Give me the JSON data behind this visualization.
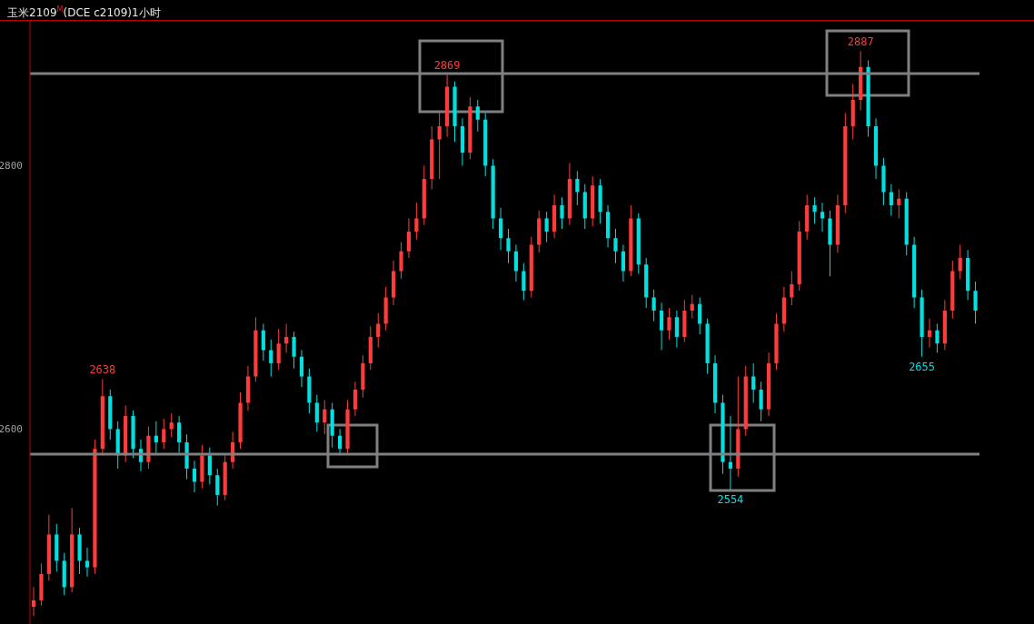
{
  "chart_data": {
    "type": "candlestick",
    "title": "玉米2109$^{M}$(DCE c2109)1小时",
    "categories": [
      null,
      null,
      null,
      null,
      null,
      null,
      null,
      null,
      null,
      null,
      null,
      null,
      null,
      null,
      null,
      null,
      null,
      null,
      null,
      null,
      null,
      null,
      null,
      null,
      null,
      null,
      null,
      null,
      null,
      null,
      null,
      null,
      null,
      null,
      null,
      null,
      null,
      null,
      null,
      null,
      null,
      null,
      null,
      null,
      null,
      null,
      null,
      null,
      null,
      null,
      null,
      null,
      null,
      null,
      null,
      null,
      null,
      null,
      null,
      null,
      null,
      null,
      null,
      null,
      null,
      null,
      null,
      null,
      null,
      null,
      null,
      null,
      null,
      null,
      null,
      null,
      null,
      null,
      null,
      null,
      null,
      null,
      null,
      null,
      null,
      null,
      null,
      null,
      null,
      null,
      null,
      null,
      null,
      null,
      null,
      null,
      null,
      null,
      null,
      null,
      null,
      null,
      null,
      null,
      null,
      null,
      null,
      null,
      null,
      null,
      null,
      null,
      null,
      null,
      null,
      null,
      null,
      null,
      null,
      null,
      null,
      null,
      null,
      null
    ],
    "ohlc": [
      [
        2465,
        2480,
        2458,
        2470
      ],
      [
        2470,
        2498,
        2466,
        2490
      ],
      [
        2490,
        2535,
        2485,
        2520
      ],
      [
        2520,
        2528,
        2492,
        2500
      ],
      [
        2500,
        2506,
        2474,
        2480
      ],
      [
        2480,
        2540,
        2476,
        2520
      ],
      [
        2520,
        2525,
        2490,
        2500
      ],
      [
        2500,
        2510,
        2488,
        2495
      ],
      [
        2495,
        2592,
        2490,
        2585
      ],
      [
        2585,
        2638,
        2580,
        2625
      ],
      [
        2625,
        2630,
        2592,
        2600
      ],
      [
        2600,
        2606,
        2570,
        2580
      ],
      [
        2580,
        2618,
        2575,
        2610
      ],
      [
        2610,
        2614,
        2578,
        2585
      ],
      [
        2585,
        2592,
        2568,
        2575
      ],
      [
        2575,
        2602,
        2570,
        2595
      ],
      [
        2595,
        2606,
        2582,
        2590
      ],
      [
        2590,
        2608,
        2585,
        2600
      ],
      [
        2600,
        2612,
        2594,
        2605
      ],
      [
        2605,
        2610,
        2582,
        2590
      ],
      [
        2590,
        2596,
        2562,
        2570
      ],
      [
        2570,
        2576,
        2552,
        2560
      ],
      [
        2560,
        2588,
        2555,
        2580
      ],
      [
        2580,
        2586,
        2558,
        2565
      ],
      [
        2565,
        2570,
        2542,
        2550
      ],
      [
        2550,
        2580,
        2546,
        2575
      ],
      [
        2575,
        2598,
        2570,
        2590
      ],
      [
        2590,
        2628,
        2585,
        2620
      ],
      [
        2620,
        2648,
        2614,
        2640
      ],
      [
        2640,
        2685,
        2636,
        2675
      ],
      [
        2675,
        2680,
        2652,
        2660
      ],
      [
        2660,
        2668,
        2640,
        2650
      ],
      [
        2650,
        2676,
        2645,
        2665
      ],
      [
        2665,
        2680,
        2658,
        2670
      ],
      [
        2670,
        2674,
        2646,
        2655
      ],
      [
        2655,
        2660,
        2632,
        2640
      ],
      [
        2640,
        2646,
        2612,
        2620
      ],
      [
        2620,
        2626,
        2598,
        2605
      ],
      [
        2605,
        2622,
        2596,
        2615
      ],
      [
        2615,
        2620,
        2586,
        2595
      ],
      [
        2595,
        2600,
        2580,
        2585
      ],
      [
        2585,
        2622,
        2582,
        2615
      ],
      [
        2615,
        2636,
        2610,
        2630
      ],
      [
        2630,
        2656,
        2624,
        2650
      ],
      [
        2650,
        2678,
        2645,
        2670
      ],
      [
        2670,
        2688,
        2662,
        2680
      ],
      [
        2680,
        2708,
        2675,
        2700
      ],
      [
        2700,
        2728,
        2694,
        2720
      ],
      [
        2720,
        2742,
        2714,
        2735
      ],
      [
        2735,
        2760,
        2730,
        2750
      ],
      [
        2750,
        2772,
        2744,
        2760
      ],
      [
        2760,
        2800,
        2755,
        2790
      ],
      [
        2790,
        2830,
        2782,
        2820
      ],
      [
        2820,
        2842,
        2790,
        2830
      ],
      [
        2830,
        2869,
        2822,
        2860
      ],
      [
        2860,
        2864,
        2818,
        2830
      ],
      [
        2830,
        2836,
        2800,
        2810
      ],
      [
        2810,
        2852,
        2805,
        2845
      ],
      [
        2845,
        2850,
        2826,
        2835
      ],
      [
        2835,
        2840,
        2792,
        2800
      ],
      [
        2800,
        2805,
        2752,
        2760
      ],
      [
        2760,
        2768,
        2736,
        2745
      ],
      [
        2745,
        2752,
        2726,
        2735
      ],
      [
        2735,
        2740,
        2712,
        2720
      ],
      [
        2720,
        2726,
        2698,
        2705
      ],
      [
        2705,
        2746,
        2700,
        2740
      ],
      [
        2740,
        2766,
        2734,
        2760
      ],
      [
        2760,
        2765,
        2742,
        2750
      ],
      [
        2750,
        2778,
        2745,
        2770
      ],
      [
        2770,
        2776,
        2752,
        2760
      ],
      [
        2760,
        2802,
        2755,
        2790
      ],
      [
        2790,
        2796,
        2770,
        2780
      ],
      [
        2780,
        2786,
        2752,
        2760
      ],
      [
        2760,
        2792,
        2754,
        2785
      ],
      [
        2785,
        2790,
        2756,
        2765
      ],
      [
        2765,
        2770,
        2738,
        2745
      ],
      [
        2745,
        2752,
        2726,
        2735
      ],
      [
        2735,
        2740,
        2712,
        2720
      ],
      [
        2720,
        2770,
        2716,
        2760
      ],
      [
        2760,
        2764,
        2718,
        2725
      ],
      [
        2725,
        2730,
        2692,
        2700
      ],
      [
        2700,
        2706,
        2682,
        2690
      ],
      [
        2690,
        2696,
        2660,
        2675
      ],
      [
        2675,
        2692,
        2668,
        2685
      ],
      [
        2685,
        2690,
        2662,
        2670
      ],
      [
        2670,
        2698,
        2666,
        2690
      ],
      [
        2690,
        2702,
        2684,
        2695
      ],
      [
        2695,
        2700,
        2672,
        2680
      ],
      [
        2680,
        2684,
        2642,
        2650
      ],
      [
        2650,
        2656,
        2612,
        2620
      ],
      [
        2620,
        2626,
        2566,
        2575
      ],
      [
        2575,
        2610,
        2554,
        2570
      ],
      [
        2570,
        2640,
        2564,
        2600
      ],
      [
        2600,
        2648,
        2595,
        2640
      ],
      [
        2640,
        2650,
        2620,
        2630
      ],
      [
        2630,
        2636,
        2606,
        2615
      ],
      [
        2615,
        2658,
        2610,
        2650
      ],
      [
        2650,
        2688,
        2645,
        2680
      ],
      [
        2680,
        2708,
        2674,
        2700
      ],
      [
        2700,
        2720,
        2694,
        2710
      ],
      [
        2710,
        2758,
        2705,
        2750
      ],
      [
        2750,
        2778,
        2744,
        2770
      ],
      [
        2770,
        2776,
        2756,
        2765
      ],
      [
        2765,
        2772,
        2750,
        2760
      ],
      [
        2760,
        2766,
        2716,
        2740
      ],
      [
        2740,
        2778,
        2734,
        2770
      ],
      [
        2770,
        2840,
        2764,
        2830
      ],
      [
        2830,
        2862,
        2820,
        2850
      ],
      [
        2850,
        2887,
        2842,
        2875
      ],
      [
        2875,
        2880,
        2822,
        2830
      ],
      [
        2830,
        2836,
        2790,
        2800
      ],
      [
        2800,
        2806,
        2770,
        2780
      ],
      [
        2780,
        2786,
        2762,
        2770
      ],
      [
        2770,
        2782,
        2760,
        2775
      ],
      [
        2775,
        2780,
        2732,
        2740
      ],
      [
        2740,
        2746,
        2692,
        2700
      ],
      [
        2700,
        2706,
        2655,
        2670
      ],
      [
        2670,
        2684,
        2662,
        2675
      ],
      [
        2675,
        2680,
        2658,
        2665
      ],
      [
        2665,
        2698,
        2660,
        2690
      ],
      [
        2690,
        2728,
        2684,
        2720
      ],
      [
        2720,
        2740,
        2714,
        2730
      ],
      [
        2730,
        2736,
        2698,
        2705
      ],
      [
        2705,
        2712,
        2680,
        2690
      ]
    ],
    "colors": [
      "#ff3b3b",
      "#ff3b3b",
      "#ff3b3b",
      "#00e0e0",
      "#00e0e0",
      "#ff3b3b",
      "#00e0e0",
      "#00e0e0",
      "#ff3b3b",
      "#ff3b3b",
      "#00e0e0",
      "#00e0e0",
      "#ff3b3b",
      "#00e0e0",
      "#00e0e0",
      "#ff3b3b",
      "#00e0e0",
      "#ff3b3b",
      "#ff3b3b",
      "#00e0e0",
      "#00e0e0",
      "#00e0e0",
      "#ff3b3b",
      "#00e0e0",
      "#00e0e0",
      "#ff3b3b",
      "#ff3b3b",
      "#ff3b3b",
      "#ff3b3b",
      "#ff3b3b",
      "#00e0e0",
      "#00e0e0",
      "#ff3b3b",
      "#ff3b3b",
      "#00e0e0",
      "#00e0e0",
      "#00e0e0",
      "#00e0e0",
      "#ff3b3b",
      "#00e0e0",
      "#00e0e0",
      "#ff3b3b",
      "#ff3b3b",
      "#ff3b3b",
      "#ff3b3b",
      "#ff3b3b",
      "#ff3b3b",
      "#ff3b3b",
      "#ff3b3b",
      "#ff3b3b",
      "#ff3b3b",
      "#ff3b3b",
      "#ff3b3b",
      "#ff3b3b",
      "#ff3b3b",
      "#00e0e0",
      "#00e0e0",
      "#ff3b3b",
      "#00e0e0",
      "#00e0e0",
      "#00e0e0",
      "#00e0e0",
      "#00e0e0",
      "#00e0e0",
      "#00e0e0",
      "#ff3b3b",
      "#ff3b3b",
      "#00e0e0",
      "#ff3b3b",
      "#00e0e0",
      "#ff3b3b",
      "#00e0e0",
      "#00e0e0",
      "#ff3b3b",
      "#00e0e0",
      "#00e0e0",
      "#00e0e0",
      "#00e0e0",
      "#ff3b3b",
      "#00e0e0",
      "#00e0e0",
      "#00e0e0",
      "#00e0e0",
      "#ff3b3b",
      "#00e0e0",
      "#ff3b3b",
      "#ff3b3b",
      "#00e0e0",
      "#00e0e0",
      "#00e0e0",
      "#00e0e0",
      "#00e0e0",
      "#ff3b3b",
      "#ff3b3b",
      "#00e0e0",
      "#00e0e0",
      "#ff3b3b",
      "#ff3b3b",
      "#ff3b3b",
      "#ff3b3b",
      "#ff3b3b",
      "#ff3b3b",
      "#00e0e0",
      "#00e0e0",
      "#00e0e0",
      "#ff3b3b",
      "#ff3b3b",
      "#ff3b3b",
      "#ff3b3b",
      "#00e0e0",
      "#00e0e0",
      "#00e0e0",
      "#00e0e0",
      "#ff3b3b",
      "#00e0e0",
      "#00e0e0",
      "#00e0e0",
      "#ff3b3b",
      "#00e0e0",
      "#ff3b3b",
      "#ff3b3b",
      "#ff3b3b",
      "#00e0e0",
      "#00e0e0"
    ],
    "ylim": [
      2452,
      2910
    ],
    "yticks": [
      2600,
      2800
    ],
    "tick_labels": "y",
    "grid": false,
    "legend": false,
    "ref_lines": [
      {
        "axis": "y",
        "value": 2870,
        "color": "#808080"
      },
      {
        "axis": "y",
        "value": 2581,
        "color": "#808080"
      }
    ],
    "annotations": [
      {
        "text": "2638",
        "y": 2638
      },
      {
        "text": "2869",
        "y": 2869
      },
      {
        "text": "2887",
        "y": 2887
      },
      {
        "text": "2554",
        "y": 2554
      },
      {
        "text": "2655",
        "y": 2655
      }
    ]
  }
}
